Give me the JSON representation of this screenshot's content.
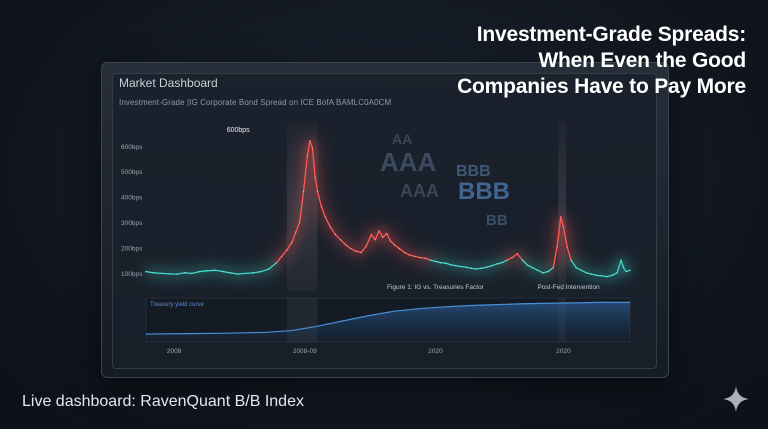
{
  "headline": {
    "line1": "Investment-Grade Spreads:",
    "line2": "When Even the Good",
    "line3": "Companies Have to Pay More"
  },
  "dashboard": {
    "title": "Market Dashboard",
    "subtitle": "Investment-Grade |IG Corporate Bond Spread on ICE BofA BAMLC0A0CM"
  },
  "footer": {
    "text": "Live dashboard: RavenQuant B/B Index"
  },
  "icons": {
    "sparkle": "sparkle-icon"
  },
  "colors": {
    "calm": "#3fd6c8",
    "stress": "#ff5a55",
    "curve": "#4a8fd6",
    "background": "#10151d"
  },
  "watermark_letters": [
    "AA",
    "AAA",
    "AAA",
    "BBB",
    "BBB",
    "BB"
  ],
  "chart_data": [
    {
      "type": "line",
      "title": "",
      "ylabel": "",
      "yticks": [
        "100bps",
        "200bps",
        "300bps",
        "400bps",
        "500bps",
        "600bps"
      ],
      "ylim": [
        60,
        670
      ],
      "xlim": [
        2005.3,
        2024.2
      ],
      "grid": false,
      "annotations": [
        {
          "label": "600bps",
          "x": 2008.9,
          "y": 600
        },
        {
          "label": "Figure 1: IG vs. Treasuries Factor",
          "x": 2016.6,
          "y": 90
        },
        {
          "label": "Post-Fed Intervention",
          "x": 2021.8,
          "y": 90
        }
      ],
      "highlights": [
        {
          "x_start": 2010.8,
          "x_end": 2012.0,
          "label": ""
        },
        {
          "x_start": 2021.4,
          "x_end": 2021.7,
          "label": ""
        }
      ],
      "series": [
        {
          "points": [
            [
              2005.3,
              105
            ],
            [
              2005.6,
              100
            ],
            [
              2005.9,
              98
            ],
            [
              2006.2,
              96
            ],
            [
              2006.5,
              95
            ],
            [
              2006.8,
              100
            ],
            [
              2007.1,
              98
            ],
            [
              2007.4,
              105
            ],
            [
              2007.7,
              108
            ],
            [
              2008.0,
              110
            ],
            [
              2008.3,
              105
            ],
            [
              2008.6,
              100
            ],
            [
              2008.9,
              95
            ],
            [
              2009.2,
              98
            ],
            [
              2009.5,
              100
            ],
            [
              2009.8,
              105
            ],
            [
              2010.1,
              115
            ],
            [
              2010.4,
              140
            ],
            [
              2010.6,
              165
            ],
            [
              2010.8,
              190
            ],
            [
              2011.0,
              220
            ],
            [
              2011.15,
              260
            ],
            [
              2011.3,
              300
            ],
            [
              2011.45,
              420
            ],
            [
              2011.6,
              560
            ],
            [
              2011.7,
              620
            ],
            [
              2011.8,
              590
            ],
            [
              2011.9,
              480
            ],
            [
              2012.0,
              420
            ],
            [
              2012.15,
              360
            ],
            [
              2012.3,
              320
            ],
            [
              2012.5,
              280
            ],
            [
              2012.7,
              250
            ],
            [
              2012.9,
              230
            ],
            [
              2013.1,
              210
            ],
            [
              2013.3,
              195
            ],
            [
              2013.5,
              185
            ],
            [
              2013.7,
              180
            ],
            [
              2013.9,
              205
            ],
            [
              2014.1,
              250
            ],
            [
              2014.25,
              230
            ],
            [
              2014.4,
              265
            ],
            [
              2014.55,
              240
            ],
            [
              2014.7,
              255
            ],
            [
              2014.85,
              225
            ],
            [
              2015.0,
              210
            ],
            [
              2015.2,
              195
            ],
            [
              2015.4,
              180
            ],
            [
              2015.6,
              170
            ],
            [
              2015.8,
              165
            ],
            [
              2016.0,
              160
            ],
            [
              2016.2,
              158
            ],
            [
              2016.4,
              150
            ],
            [
              2016.6,
              145
            ],
            [
              2016.8,
              140
            ],
            [
              2017.0,
              138
            ],
            [
              2017.2,
              132
            ],
            [
              2017.4,
              128
            ],
            [
              2017.6,
              125
            ],
            [
              2017.8,
              122
            ],
            [
              2018.0,
              118
            ],
            [
              2018.2,
              115
            ],
            [
              2018.4,
              118
            ],
            [
              2018.6,
              122
            ],
            [
              2018.8,
              128
            ],
            [
              2019.0,
              135
            ],
            [
              2019.2,
              140
            ],
            [
              2019.4,
              150
            ],
            [
              2019.6,
              160
            ],
            [
              2019.8,
              175
            ],
            [
              2020.0,
              150
            ],
            [
              2020.2,
              130
            ],
            [
              2020.4,
              120
            ],
            [
              2020.6,
              110
            ],
            [
              2020.8,
              100
            ],
            [
              2021.0,
              105
            ],
            [
              2021.2,
              120
            ],
            [
              2021.35,
              200
            ],
            [
              2021.5,
              320
            ],
            [
              2021.6,
              280
            ],
            [
              2021.75,
              200
            ],
            [
              2021.9,
              150
            ],
            [
              2022.1,
              120
            ],
            [
              2022.3,
              110
            ],
            [
              2022.5,
              100
            ],
            [
              2022.7,
              95
            ],
            [
              2022.9,
              90
            ],
            [
              2023.1,
              88
            ],
            [
              2023.3,
              85
            ],
            [
              2023.5,
              90
            ],
            [
              2023.7,
              100
            ],
            [
              2023.85,
              150
            ],
            [
              2023.95,
              120
            ],
            [
              2024.05,
              105
            ],
            [
              2024.2,
              110
            ]
          ]
        }
      ]
    },
    {
      "type": "area",
      "title": "Treasury yield curve",
      "xticks": [
        {
          "label": "2008",
          "x": 2006.4
        },
        {
          "label": "2008-09",
          "x": 2011.5
        },
        {
          "label": "2020",
          "x": 2016.6
        },
        {
          "label": "2020",
          "x": 2021.6
        }
      ],
      "xlim": [
        2005.3,
        2024.2
      ],
      "ylim": [
        0,
        1
      ],
      "series": [
        {
          "points": [
            [
              2005.3,
              0.18
            ],
            [
              2007.0,
              0.19
            ],
            [
              2008.5,
              0.2
            ],
            [
              2010.0,
              0.22
            ],
            [
              2011.0,
              0.26
            ],
            [
              2012.0,
              0.36
            ],
            [
              2013.0,
              0.48
            ],
            [
              2014.0,
              0.6
            ],
            [
              2015.0,
              0.7
            ],
            [
              2016.0,
              0.76
            ],
            [
              2017.0,
              0.8
            ],
            [
              2018.0,
              0.83
            ],
            [
              2019.0,
              0.85
            ],
            [
              2020.0,
              0.87
            ],
            [
              2021.0,
              0.88
            ],
            [
              2022.0,
              0.89
            ],
            [
              2023.0,
              0.9
            ],
            [
              2024.2,
              0.9
            ]
          ]
        }
      ]
    }
  ]
}
